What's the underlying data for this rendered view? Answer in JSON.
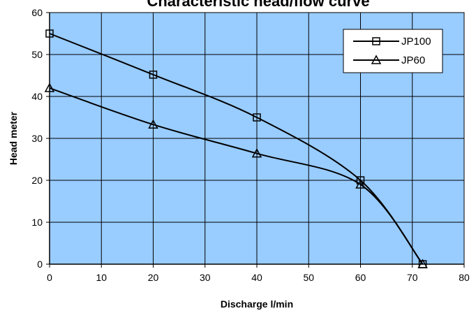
{
  "chart_data": {
    "type": "line",
    "title": "Characteristic head/flow curve",
    "xlabel": "Discharge l/min",
    "ylabel": "Head meter",
    "xlim": [
      0,
      80
    ],
    "ylim": [
      0,
      60
    ],
    "xticks": [
      0,
      10,
      20,
      30,
      40,
      50,
      60,
      70,
      80
    ],
    "yticks": [
      0,
      10,
      20,
      30,
      40,
      50,
      60
    ],
    "grid": true,
    "legend_position": "top-right",
    "plot_background": "#99ccff",
    "series": [
      {
        "name": "JP100",
        "marker": "square",
        "color": "#000000",
        "points": [
          [
            0,
            55
          ],
          [
            20,
            45.2
          ],
          [
            40,
            35
          ],
          [
            60,
            20
          ],
          [
            72,
            0
          ]
        ]
      },
      {
        "name": "JP60",
        "marker": "triangle",
        "color": "#000000",
        "points": [
          [
            0,
            42
          ],
          [
            20,
            33.3
          ],
          [
            40,
            26.4
          ],
          [
            60,
            19
          ],
          [
            72,
            0
          ]
        ]
      }
    ]
  }
}
